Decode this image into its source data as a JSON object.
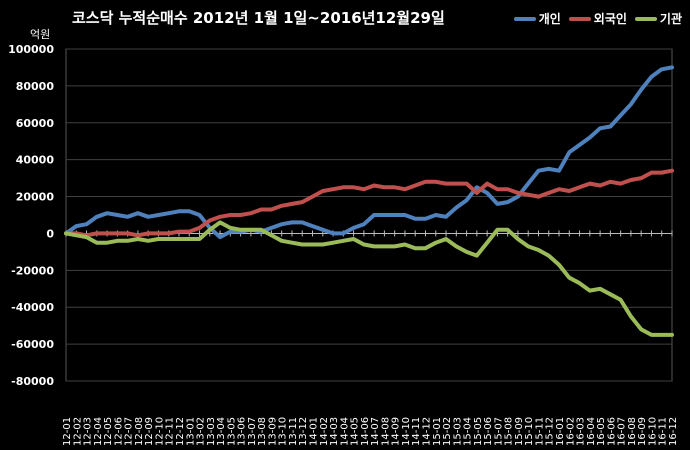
{
  "chart_data": {
    "type": "line",
    "title": "코스닥  누적순매수 2012년 1월 1일~2016년12월29일",
    "unit_label": "억원",
    "xlabel": "",
    "ylabel": "",
    "ylim": [
      -80000,
      100000
    ],
    "yticks": [
      100000,
      80000,
      60000,
      40000,
      20000,
      0,
      -20000,
      -40000,
      -60000,
      -80000
    ],
    "grid": true,
    "legend_position": "top-right",
    "categories": [
      "12-01",
      "12-02",
      "12-03",
      "12-04",
      "12-05",
      "12-06",
      "12-07",
      "12-08",
      "12-09",
      "12-10",
      "12-11",
      "12-12",
      "13-01",
      "13-02",
      "13-03",
      "13-04",
      "13-05",
      "13-06",
      "13-07",
      "13-08",
      "13-09",
      "13-10",
      "13-11",
      "13-12",
      "14-01",
      "14-02",
      "14-03",
      "14-04",
      "14-05",
      "14-06",
      "14-07",
      "14-08",
      "14-09",
      "14-10",
      "14-11",
      "14-12",
      "15-01",
      "15-02",
      "15-03",
      "15-04",
      "15-05",
      "15-06",
      "15-07",
      "15-08",
      "15-09",
      "15-10",
      "15-11",
      "15-12",
      "16-01",
      "16-02",
      "16-03",
      "16-04",
      "16-05",
      "16-06",
      "16-07",
      "16-08",
      "16-09",
      "16-10",
      "16-11",
      "16-12"
    ],
    "series": [
      {
        "name": "개인",
        "color": "#4F81BD",
        "values": [
          0,
          4000,
          5000,
          9000,
          11000,
          10000,
          9000,
          11000,
          9000,
          10000,
          11000,
          12000,
          12000,
          10000,
          3000,
          -2000,
          1000,
          1000,
          2000,
          1000,
          3000,
          5000,
          6000,
          6000,
          4000,
          2000,
          0,
          0,
          3000,
          5000,
          10000,
          10000,
          10000,
          10000,
          8000,
          8000,
          10000,
          9000,
          14000,
          18000,
          25000,
          22000,
          16000,
          17000,
          20000,
          27000,
          34000,
          35000,
          34000,
          44000,
          48000,
          52000,
          57000,
          58000,
          64000,
          70000,
          78000,
          85000,
          89000,
          90000
        ]
      },
      {
        "name": "외국인",
        "color": "#C0504D",
        "values": [
          0,
          0,
          -1000,
          0,
          0,
          0,
          0,
          -1000,
          0,
          0,
          0,
          1000,
          1000,
          3000,
          7000,
          9000,
          10000,
          10000,
          11000,
          13000,
          13000,
          15000,
          16000,
          17000,
          20000,
          23000,
          24000,
          25000,
          25000,
          24000,
          26000,
          25000,
          25000,
          24000,
          26000,
          28000,
          28000,
          27000,
          27000,
          27000,
          22000,
          27000,
          24000,
          24000,
          22000,
          21000,
          20000,
          22000,
          24000,
          23000,
          25000,
          27000,
          26000,
          28000,
          27000,
          29000,
          30000,
          33000,
          33000,
          34000
        ]
      },
      {
        "name": "기관",
        "color": "#9BBB59",
        "values": [
          0,
          -1000,
          -2000,
          -5000,
          -5000,
          -4000,
          -4000,
          -3000,
          -4000,
          -3000,
          -3000,
          -3000,
          -3000,
          -3000,
          2000,
          6000,
          3000,
          2000,
          2000,
          2000,
          -1000,
          -4000,
          -5000,
          -6000,
          -6000,
          -6000,
          -5000,
          -4000,
          -3000,
          -6000,
          -7000,
          -7000,
          -7000,
          -6000,
          -8000,
          -8000,
          -5000,
          -3000,
          -7000,
          -10000,
          -12000,
          -5000,
          2000,
          2000,
          -3000,
          -7000,
          -9000,
          -12000,
          -17000,
          -24000,
          -27000,
          -31000,
          -30000,
          -33000,
          -36000,
          -45000,
          -52000,
          -55000,
          -55000,
          -55000
        ]
      }
    ]
  }
}
